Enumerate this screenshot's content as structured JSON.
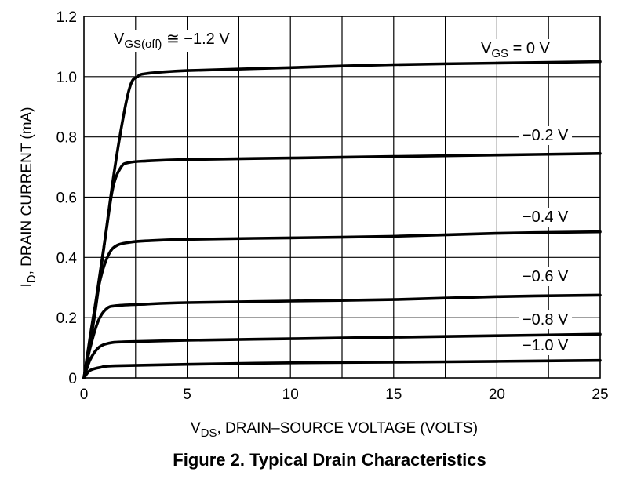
{
  "chart_data": {
    "type": "line",
    "title": "Figure 2. Typical Drain Characteristics",
    "xlabel": {
      "main": "V",
      "sub": "DS",
      "rest": ", DRAIN–SOURCE VOLTAGE (VOLTS)"
    },
    "ylabel": {
      "main": "I",
      "sub": "D",
      "rest": ", DRAIN CURRENT (mA)"
    },
    "xlim": [
      0,
      25
    ],
    "ylim": [
      0,
      1.2
    ],
    "x_ticks": [
      "0",
      "5",
      "10",
      "15",
      "20",
      "25"
    ],
    "y_ticks": [
      "0",
      "0.2",
      "0.4",
      "0.6",
      "0.8",
      "1.0",
      "1.2"
    ],
    "grid": true,
    "annotation": {
      "main": "V",
      "sub": "GS(off)",
      "rest": " ≅ −1.2 V"
    },
    "series": [
      {
        "name": "VGS = 0 V",
        "label": {
          "main": "V",
          "sub": "GS",
          "rest": " = 0 V"
        },
        "points": [
          [
            0,
            0
          ],
          [
            0.5,
            0.2
          ],
          [
            1.0,
            0.45
          ],
          [
            1.5,
            0.7
          ],
          [
            2.0,
            0.9
          ],
          [
            2.3,
            0.98
          ],
          [
            2.6,
            1.0
          ],
          [
            3.0,
            1.01
          ],
          [
            5,
            1.02
          ],
          [
            10,
            1.03
          ],
          [
            15,
            1.04
          ],
          [
            20,
            1.045
          ],
          [
            25,
            1.05
          ]
        ]
      },
      {
        "name": "-0.2 V",
        "label": {
          "main": "",
          "sub": "",
          "rest": "−0.2 V"
        },
        "points": [
          [
            0,
            0
          ],
          [
            0.5,
            0.22
          ],
          [
            1.0,
            0.45
          ],
          [
            1.4,
            0.63
          ],
          [
            1.8,
            0.7
          ],
          [
            2.2,
            0.715
          ],
          [
            3.0,
            0.72
          ],
          [
            5,
            0.725
          ],
          [
            10,
            0.73
          ],
          [
            15,
            0.735
          ],
          [
            20,
            0.74
          ],
          [
            25,
            0.745
          ]
        ]
      },
      {
        "name": "-0.4 V",
        "label": {
          "main": "",
          "sub": "",
          "rest": "−0.4 V"
        },
        "points": [
          [
            0,
            0
          ],
          [
            0.4,
            0.18
          ],
          [
            0.8,
            0.33
          ],
          [
            1.2,
            0.41
          ],
          [
            1.6,
            0.44
          ],
          [
            2.2,
            0.45
          ],
          [
            3.0,
            0.455
          ],
          [
            5,
            0.46
          ],
          [
            10,
            0.465
          ],
          [
            15,
            0.47
          ],
          [
            20,
            0.48
          ],
          [
            25,
            0.485
          ]
        ]
      },
      {
        "name": "-0.6 V",
        "label": {
          "main": "",
          "sub": "",
          "rest": "−0.6 V"
        },
        "points": [
          [
            0,
            0
          ],
          [
            0.3,
            0.1
          ],
          [
            0.7,
            0.19
          ],
          [
            1.1,
            0.23
          ],
          [
            1.6,
            0.24
          ],
          [
            3.0,
            0.245
          ],
          [
            5,
            0.25
          ],
          [
            10,
            0.255
          ],
          [
            15,
            0.26
          ],
          [
            20,
            0.27
          ],
          [
            25,
            0.275
          ]
        ]
      },
      {
        "name": "-0.8 V",
        "label": {
          "main": "",
          "sub": "",
          "rest": "−0.8 V"
        },
        "points": [
          [
            0,
            0
          ],
          [
            0.3,
            0.06
          ],
          [
            0.7,
            0.1
          ],
          [
            1.2,
            0.115
          ],
          [
            2.0,
            0.12
          ],
          [
            5,
            0.125
          ],
          [
            10,
            0.13
          ],
          [
            15,
            0.135
          ],
          [
            20,
            0.14
          ],
          [
            25,
            0.145
          ]
        ]
      },
      {
        "name": "-1.0 V",
        "label": {
          "main": "",
          "sub": "",
          "rest": "−1.0 V"
        },
        "points": [
          [
            0,
            0
          ],
          [
            0.3,
            0.025
          ],
          [
            0.8,
            0.035
          ],
          [
            1.5,
            0.04
          ],
          [
            5,
            0.045
          ],
          [
            10,
            0.05
          ],
          [
            15,
            0.052
          ],
          [
            20,
            0.055
          ],
          [
            25,
            0.058
          ]
        ]
      }
    ]
  }
}
